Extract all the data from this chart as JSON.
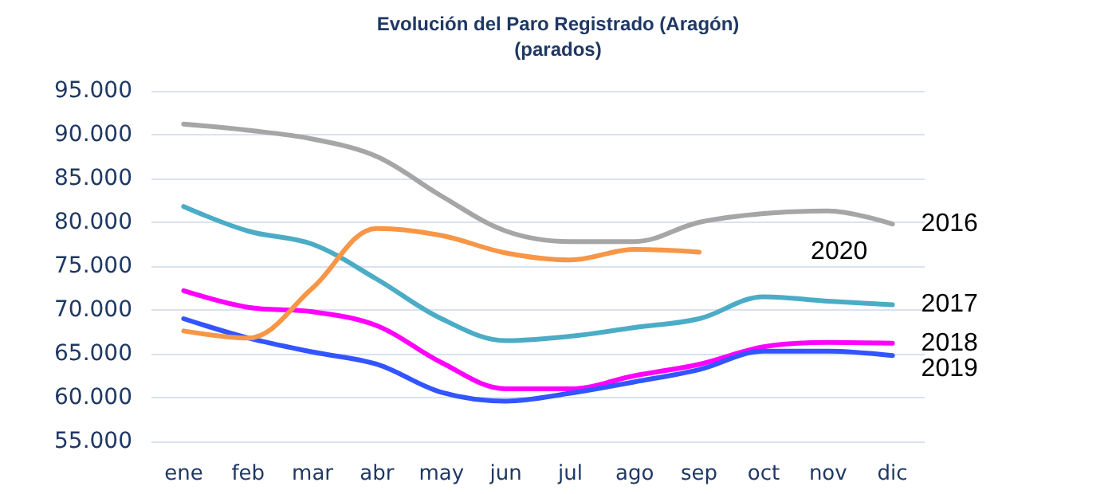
{
  "chart_data": {
    "type": "line",
    "title": "Evolución del Paro Registrado (Aragón)",
    "subtitle": "(parados)",
    "categories": [
      "ene",
      "feb",
      "mar",
      "abr",
      "may",
      "jun",
      "jul",
      "ago",
      "sep",
      "oct",
      "nov",
      "dic"
    ],
    "series": [
      {
        "name": "2016",
        "color": "#a6a6a6",
        "values": [
          91200,
          90500,
          89500,
          87500,
          83000,
          79000,
          77800,
          77800,
          80000,
          81000,
          81300,
          79800
        ]
      },
      {
        "name": "2017",
        "color": "#4bacc6",
        "values": [
          81800,
          79000,
          77500,
          73500,
          69000,
          66500,
          67000,
          68000,
          69000,
          71500,
          71000,
          70600
        ]
      },
      {
        "name": "2018",
        "color": "#ff00ff",
        "values": [
          72200,
          70300,
          69800,
          68200,
          64000,
          61000,
          61000,
          62500,
          63800,
          65800,
          66300,
          66200
        ]
      },
      {
        "name": "2019",
        "color": "#3355ff",
        "values": [
          69000,
          66800,
          65200,
          63800,
          60600,
          59600,
          60500,
          61800,
          63200,
          65300,
          65300,
          64800
        ]
      },
      {
        "name": "2020",
        "color": "#f79646",
        "values": [
          67600,
          66800,
          72500,
          79300,
          78500,
          76500,
          75700,
          76900,
          76600,
          null,
          null,
          null
        ]
      }
    ],
    "ylim": [
      55000,
      95000
    ],
    "yticks": [
      {
        "value": 55000,
        "label": "55.000"
      },
      {
        "value": 60000,
        "label": "60.000"
      },
      {
        "value": 65000,
        "label": "65.000"
      },
      {
        "value": 70000,
        "label": "70.000"
      },
      {
        "value": 75000,
        "label": "75.000"
      },
      {
        "value": 80000,
        "label": "80.000"
      },
      {
        "value": 85000,
        "label": "85.000"
      },
      {
        "value": 90000,
        "label": "90.000"
      },
      {
        "value": 95000,
        "label": "95.000"
      }
    ],
    "grid": "y",
    "legend": false,
    "marker": "none",
    "line_style": "solid"
  }
}
